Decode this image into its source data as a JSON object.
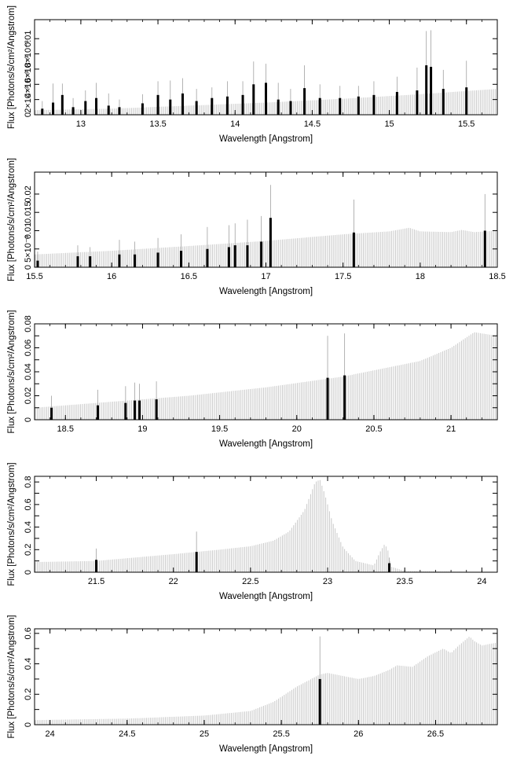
{
  "chart_data": [
    {
      "type": "bar",
      "xlabel": "Wavelength [Angstrom]",
      "ylabel": "Flux [Photons/s/cm²/Angstrom]",
      "xlim": [
        12.7,
        15.7
      ],
      "ylim": [
        0,
        0.0125
      ],
      "xticks": [
        13,
        13.5,
        14,
        14.5,
        15,
        15.5
      ],
      "xtick_labels": [
        "13",
        "13.5",
        "14",
        "14.5",
        "15",
        "15.5"
      ],
      "yticks": [
        0,
        0.002,
        0.004,
        0.006,
        0.008,
        0.01
      ],
      "ytick_labels": [
        "0",
        "2×10⁻³",
        "4×10⁻³",
        "6×10⁻³",
        "8×10⁻³",
        "0.01"
      ],
      "model": {
        "x": [
          12.7,
          13.2,
          13.7,
          14.2,
          14.7,
          15.2,
          15.7
        ],
        "y": [
          0.0006,
          0.0008,
          0.0012,
          0.0016,
          0.0021,
          0.0027,
          0.0034
        ]
      },
      "points": [
        {
          "x": 12.75,
          "y": 0.0008,
          "err": 0.001
        },
        {
          "x": 12.82,
          "y": 0.0016,
          "err": 0.0025
        },
        {
          "x": 12.88,
          "y": 0.0026,
          "err": 0.0015
        },
        {
          "x": 12.95,
          "y": 0.001,
          "err": 0.0012
        },
        {
          "x": 13.03,
          "y": 0.0018,
          "err": 0.0014
        },
        {
          "x": 13.1,
          "y": 0.0022,
          "err": 0.002
        },
        {
          "x": 13.18,
          "y": 0.0012,
          "err": 0.0016
        },
        {
          "x": 13.25,
          "y": 0.001,
          "err": 0.001
        },
        {
          "x": 13.4,
          "y": 0.0015,
          "err": 0.0012
        },
        {
          "x": 13.5,
          "y": 0.0026,
          "err": 0.0018
        },
        {
          "x": 13.58,
          "y": 0.002,
          "err": 0.0025
        },
        {
          "x": 13.66,
          "y": 0.0028,
          "err": 0.002
        },
        {
          "x": 13.75,
          "y": 0.0018,
          "err": 0.0016
        },
        {
          "x": 13.85,
          "y": 0.0022,
          "err": 0.0014
        },
        {
          "x": 13.95,
          "y": 0.0024,
          "err": 0.002
        },
        {
          "x": 14.05,
          "y": 0.0026,
          "err": 0.0018
        },
        {
          "x": 14.12,
          "y": 0.004,
          "err": 0.003
        },
        {
          "x": 14.2,
          "y": 0.0042,
          "err": 0.0025
        },
        {
          "x": 14.28,
          "y": 0.002,
          "err": 0.0022
        },
        {
          "x": 14.36,
          "y": 0.0018,
          "err": 0.0016
        },
        {
          "x": 14.45,
          "y": 0.0035,
          "err": 0.003
        },
        {
          "x": 14.55,
          "y": 0.0022,
          "err": 0.0018
        },
        {
          "x": 14.68,
          "y": 0.0022,
          "err": 0.0016
        },
        {
          "x": 14.8,
          "y": 0.0024,
          "err": 0.0014
        },
        {
          "x": 14.9,
          "y": 0.0026,
          "err": 0.0018
        },
        {
          "x": 15.05,
          "y": 0.003,
          "err": 0.002
        },
        {
          "x": 15.18,
          "y": 0.0032,
          "err": 0.003
        },
        {
          "x": 15.24,
          "y": 0.0065,
          "err": 0.0045
        },
        {
          "x": 15.27,
          "y": 0.0063,
          "err": 0.0048
        },
        {
          "x": 15.35,
          "y": 0.0034,
          "err": 0.0025
        },
        {
          "x": 15.5,
          "y": 0.0036,
          "err": 0.0035
        }
      ]
    },
    {
      "type": "bar",
      "xlabel": "Wavelength [Angstrom]",
      "ylabel": "Flux [Photons/s/cm²/Angstrom]",
      "xlim": [
        15.5,
        18.5
      ],
      "ylim": [
        0,
        0.026
      ],
      "xticks": [
        15.5,
        16,
        16.5,
        17,
        17.5,
        18,
        18.5
      ],
      "xtick_labels": [
        "15.5",
        "16",
        "16.5",
        "17",
        "17.5",
        "18",
        "18.5"
      ],
      "yticks": [
        0,
        0.005,
        0.01,
        0.015,
        0.02
      ],
      "ytick_labels": [
        "0",
        "5×10⁻³",
        "0.01",
        "0.015",
        "0.02"
      ],
      "model": {
        "x": [
          15.5,
          16.0,
          16.5,
          17.0,
          17.5,
          17.8,
          17.93,
          18.0,
          18.2,
          18.27,
          18.35,
          18.5
        ],
        "y": [
          0.0035,
          0.0045,
          0.0058,
          0.0072,
          0.009,
          0.0098,
          0.0108,
          0.0098,
          0.0096,
          0.0102,
          0.0096,
          0.01
        ]
      },
      "points": [
        {
          "x": 15.52,
          "y": 0.0018,
          "err": 0.0025
        },
        {
          "x": 15.78,
          "y": 0.003,
          "err": 0.003
        },
        {
          "x": 15.86,
          "y": 0.003,
          "err": 0.0025
        },
        {
          "x": 16.05,
          "y": 0.0035,
          "err": 0.004
        },
        {
          "x": 16.15,
          "y": 0.0035,
          "err": 0.0035
        },
        {
          "x": 16.3,
          "y": 0.004,
          "err": 0.004
        },
        {
          "x": 16.45,
          "y": 0.0045,
          "err": 0.0045
        },
        {
          "x": 16.62,
          "y": 0.005,
          "err": 0.006
        },
        {
          "x": 16.76,
          "y": 0.0055,
          "err": 0.006
        },
        {
          "x": 16.8,
          "y": 0.006,
          "err": 0.006
        },
        {
          "x": 16.88,
          "y": 0.006,
          "err": 0.007
        },
        {
          "x": 16.97,
          "y": 0.007,
          "err": 0.007
        },
        {
          "x": 17.03,
          "y": 0.0135,
          "err": 0.009
        },
        {
          "x": 17.57,
          "y": 0.0095,
          "err": 0.009
        },
        {
          "x": 18.42,
          "y": 0.01,
          "err": 0.01
        }
      ]
    },
    {
      "type": "bar",
      "xlabel": "Wavelength [Angstrom]",
      "ylabel": "Flux [Photons/s/cm²/Angstrom]",
      "xlim": [
        18.3,
        21.3
      ],
      "ylim": [
        0,
        0.08
      ],
      "xticks": [
        18.5,
        19,
        19.5,
        20,
        20.5,
        21
      ],
      "xtick_labels": [
        "18.5",
        "19",
        "19.5",
        "20",
        "20.5",
        "21"
      ],
      "yticks": [
        0,
        0.01,
        0.02,
        0.03,
        0.04,
        0.05,
        0.06,
        0.07,
        0.08
      ],
      "ytick_labels": [
        "0",
        "",
        "0.02",
        "",
        "0.04",
        "",
        "0.06",
        "",
        "0.08"
      ],
      "model": {
        "x": [
          18.3,
          18.8,
          19.3,
          19.8,
          20.3,
          20.8,
          21.0,
          21.15,
          21.3
        ],
        "y": [
          0.01,
          0.015,
          0.02,
          0.027,
          0.036,
          0.049,
          0.06,
          0.073,
          0.07
        ]
      },
      "points": [
        {
          "x": 18.41,
          "y": 0.01,
          "err": 0.01
        },
        {
          "x": 18.71,
          "y": 0.012,
          "err": 0.013
        },
        {
          "x": 18.89,
          "y": 0.014,
          "err": 0.014
        },
        {
          "x": 18.95,
          "y": 0.016,
          "err": 0.015
        },
        {
          "x": 18.98,
          "y": 0.016,
          "err": 0.014
        },
        {
          "x": 19.09,
          "y": 0.017,
          "err": 0.015
        },
        {
          "x": 20.2,
          "y": 0.035,
          "err": 0.035
        },
        {
          "x": 20.31,
          "y": 0.037,
          "err": 0.035
        }
      ]
    },
    {
      "type": "bar",
      "xlabel": "Wavelength [Angstrom]",
      "ylabel": "Flux [Photons/s/cm²/Angstrom]",
      "xlim": [
        21.1,
        24.1
      ],
      "ylim": [
        0,
        0.85
      ],
      "xticks": [
        21.5,
        22,
        22.5,
        23,
        23.5,
        24
      ],
      "xtick_labels": [
        "21.5",
        "22",
        "22.5",
        "23",
        "23.5",
        "24"
      ],
      "yticks": [
        0,
        0.1,
        0.2,
        0.3,
        0.4,
        0.5,
        0.6,
        0.7,
        0.8
      ],
      "ytick_labels": [
        "0",
        "",
        "0.2",
        "",
        "0.4",
        "",
        "0.6",
        "",
        "0.8"
      ],
      "model": {
        "x": [
          21.1,
          21.5,
          22.0,
          22.3,
          22.5,
          22.65,
          22.75,
          22.85,
          22.92,
          22.95,
          22.98,
          23.03,
          23.1,
          23.18,
          23.3,
          23.34,
          23.37,
          23.39,
          23.41,
          23.5,
          24.1
        ],
        "y": [
          0.09,
          0.1,
          0.16,
          0.2,
          0.23,
          0.28,
          0.36,
          0.55,
          0.8,
          0.82,
          0.7,
          0.45,
          0.22,
          0.1,
          0.06,
          0.18,
          0.25,
          0.2,
          0.05,
          0.01,
          0.0
        ]
      },
      "points": [
        {
          "x": 21.5,
          "y": 0.11,
          "err": 0.1
        },
        {
          "x": 22.15,
          "y": 0.18,
          "err": 0.18
        },
        {
          "x": 23.4,
          "y": 0.08,
          "err": 0.05
        }
      ]
    },
    {
      "type": "bar",
      "xlabel": "Wavelength [Angstrom]",
      "ylabel": "Flux [Photons/s/cm²/Angstrom]",
      "xlim": [
        23.9,
        26.9
      ],
      "ylim": [
        0,
        0.63
      ],
      "xticks": [
        24,
        24.5,
        25,
        25.5,
        26,
        26.5
      ],
      "xtick_labels": [
        "24",
        "24.5",
        "25",
        "25.5",
        "26",
        "26.5"
      ],
      "yticks": [
        0,
        0.1,
        0.2,
        0.3,
        0.4,
        0.5,
        0.6
      ],
      "ytick_labels": [
        "0",
        "",
        "0.2",
        "",
        "0.4",
        "",
        "0.6"
      ],
      "model": {
        "x": [
          23.9,
          24.5,
          25.0,
          25.3,
          25.45,
          25.6,
          25.75,
          25.8,
          25.9,
          26.0,
          26.1,
          26.2,
          26.25,
          26.35,
          26.45,
          26.55,
          26.6,
          26.65,
          26.72,
          26.75,
          26.8,
          26.9
        ],
        "y": [
          0.03,
          0.04,
          0.06,
          0.09,
          0.15,
          0.25,
          0.33,
          0.34,
          0.32,
          0.3,
          0.32,
          0.36,
          0.39,
          0.38,
          0.45,
          0.5,
          0.47,
          0.52,
          0.58,
          0.55,
          0.52,
          0.54
        ]
      },
      "points": [
        {
          "x": 25.75,
          "y": 0.3,
          "err": 0.28
        }
      ]
    }
  ]
}
